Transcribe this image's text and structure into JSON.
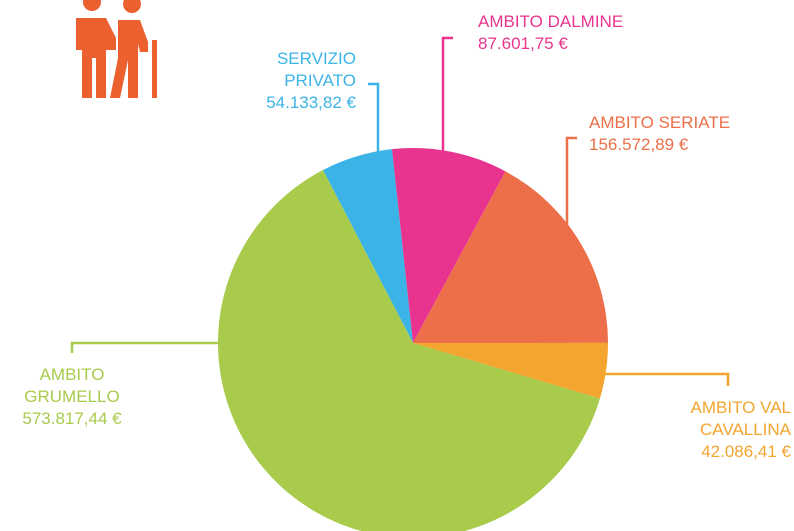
{
  "chart_data": {
    "type": "pie",
    "categories": [
      "SERVIZIO PRIVATO",
      "AMBITO DALMINE",
      "AMBITO SERIATE",
      "AMBITO VAL CAVALLINA",
      "AMBITO GRUMELLO"
    ],
    "values": [
      54133.82,
      87601.75,
      156572.89,
      42086.41,
      573817.44
    ],
    "value_labels": [
      "54.133,82 €",
      "87.601,75 €",
      "156.572,89 €",
      "42.086,41 €",
      "573.817,44 €"
    ],
    "colors": [
      "#3bb3e6",
      "#e8348f",
      "#ec6f49",
      "#f3a530",
      "#a8cb4c"
    ]
  }
}
